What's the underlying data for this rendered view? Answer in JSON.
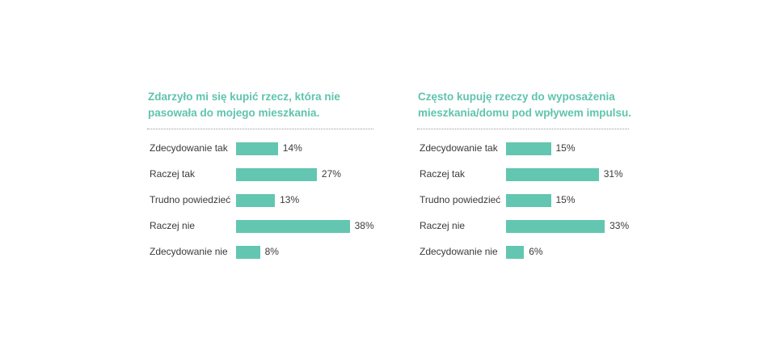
{
  "chart_data": [
    {
      "type": "bar",
      "orientation": "horizontal",
      "title": "Zdarzyło mi się kupić rzecz, która nie\npasowała do mojego mieszkania.",
      "categories": [
        "Zdecydowanie tak",
        "Raczej tak",
        "Trudno powiedzieć",
        "Raczej nie",
        "Zdecydowanie nie"
      ],
      "values": [
        14,
        27,
        13,
        38,
        8
      ],
      "value_labels": [
        "14%",
        "27%",
        "13%",
        "38%",
        "8%"
      ],
      "unit": "%",
      "bar_color": "#63c6b1"
    },
    {
      "type": "bar",
      "orientation": "horizontal",
      "title": "Często kupuję rzeczy do wyposażenia\nmieszkania/domu pod wpływem impulsu.",
      "categories": [
        "Zdecydowanie tak",
        "Raczej tak",
        "Trudno powiedzieć",
        "Raczej nie",
        "Zdecydowanie nie"
      ],
      "values": [
        15,
        31,
        15,
        33,
        6
      ],
      "value_labels": [
        "15%",
        "31%",
        "15%",
        "33%",
        "6%"
      ],
      "unit": "%",
      "bar_color": "#63c6b1"
    }
  ],
  "colors": {
    "title": "#5fc4ad",
    "bar": "#63c6b1",
    "text": "#3a3a3a",
    "divider": "#9a9a9a"
  }
}
